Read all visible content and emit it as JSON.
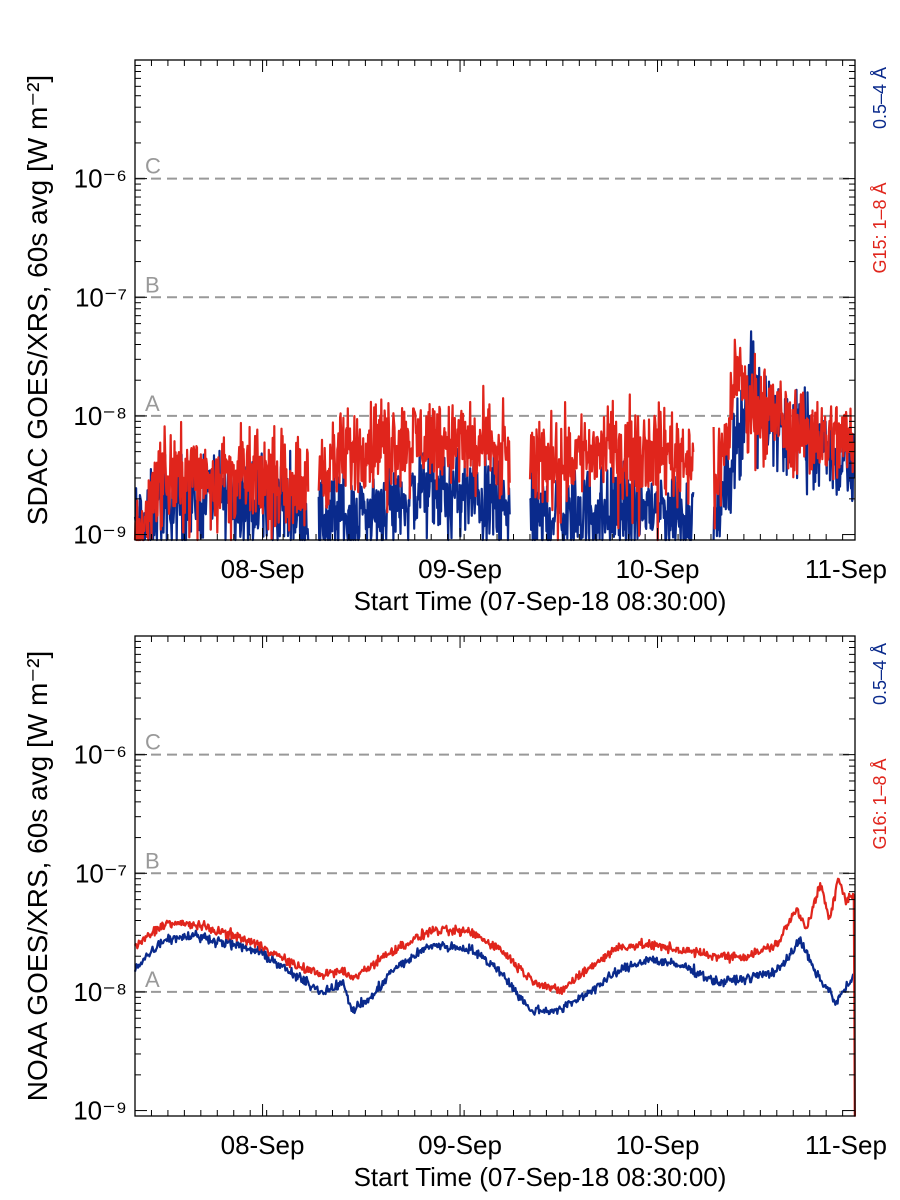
{
  "colors": {
    "low_channel": "#0a2a8c",
    "high_channel": "#e0251c",
    "flare_class": "#999999"
  },
  "chart_data": [
    {
      "type": "line",
      "ylabel": "SDAC GOES/XRS, 60s avg [W m⁻²]",
      "xlabel": "Start Time (07-Sep-18 08:30:00)",
      "x_tick_labels": [
        "08-Sep",
        "09-Sep",
        "10-Sep",
        "11-Sep"
      ],
      "x_range": [
        "07-Sep-18 08:30:00",
        "11-Sep-18 00:00:00"
      ],
      "y_scale": "log",
      "ylim": [
        9e-10,
        1e-05
      ],
      "y_tick_labels": [
        "10⁻⁹",
        "10⁻⁸",
        "10⁻⁷",
        "10⁻⁶"
      ],
      "flare_levels": [
        {
          "label": "A",
          "value": 1e-08
        },
        {
          "label": "B",
          "value": 1e-07
        },
        {
          "label": "C",
          "value": 1e-06
        }
      ],
      "series": [
        {
          "name": "0.5–4 Å",
          "color": "#0a2a8c",
          "kind": "noisy",
          "points": [
            [
              0,
              1.3e-09
            ],
            [
              0.05,
              1.1e-09
            ],
            [
              0.1,
              1.6e-09
            ],
            [
              0.2,
              1.9e-09
            ],
            [
              0.4,
              2.2e-09
            ],
            [
              0.6,
              2e-09
            ],
            [
              0.8,
              1.9e-09
            ],
            [
              0.88,
              1.6e-09
            ],
            [
              0.89,
              null
            ],
            [
              0.92,
              null
            ],
            [
              0.93,
              1.3e-09
            ],
            [
              1.2,
              1.6e-09
            ],
            [
              1.5,
              2.4e-09
            ],
            [
              1.75,
              2e-09
            ],
            [
              1.9,
              1.6e-09
            ],
            [
              1.92,
              null
            ],
            [
              1.98,
              null
            ],
            [
              2.0,
              1.4e-09
            ],
            [
              2.3,
              1.6e-09
            ],
            [
              2.6,
              1.7e-09
            ],
            [
              2.83,
              1.5e-09
            ],
            [
              2.85,
              null
            ],
            [
              2.9,
              null
            ],
            [
              2.93,
              1.2e-09
            ],
            [
              3.0,
              3e-09
            ],
            [
              3.07,
              9e-09
            ],
            [
              3.12,
              1.8e-08
            ],
            [
              3.18,
              1.4e-08
            ],
            [
              3.3,
              8e-09
            ],
            [
              3.5,
              6e-09
            ],
            [
              3.64,
              3e-09
            ]
          ]
        },
        {
          "name": "G15: 1–8 Å",
          "color": "#e0251c",
          "kind": "noisy",
          "points": [
            [
              0,
              1e-09
            ],
            [
              0.05,
              1.3e-09
            ],
            [
              0.1,
              2.8e-09
            ],
            [
              0.2,
              3.2e-09
            ],
            [
              0.4,
              3.4e-09
            ],
            [
              0.6,
              3e-09
            ],
            [
              0.8,
              3e-09
            ],
            [
              0.88,
              2.5e-09
            ],
            [
              0.89,
              null
            ],
            [
              0.92,
              null
            ],
            [
              0.93,
              3.5e-09
            ],
            [
              1.2,
              6e-09
            ],
            [
              1.5,
              6.5e-09
            ],
            [
              1.75,
              5.5e-09
            ],
            [
              1.9,
              4.5e-09
            ],
            [
              1.92,
              null
            ],
            [
              1.98,
              null
            ],
            [
              2.0,
              4e-09
            ],
            [
              2.3,
              5e-09
            ],
            [
              2.6,
              5.5e-09
            ],
            [
              2.83,
              4.5e-09
            ],
            [
              2.85,
              null
            ],
            [
              2.9,
              null
            ],
            [
              2.93,
              3e-09
            ],
            [
              3.0,
              6e-09
            ],
            [
              3.04,
              2.8e-08
            ],
            [
              3.1,
              1.4e-08
            ],
            [
              3.2,
              1.1e-08
            ],
            [
              3.35,
              8e-09
            ],
            [
              3.5,
              6.5e-09
            ],
            [
              3.64,
              6e-09
            ]
          ]
        }
      ]
    },
    {
      "type": "line",
      "ylabel": "NOAA GOES/XRS, 60s avg [W m⁻²]",
      "xlabel": "Start Time (07-Sep-18 08:30:00)",
      "x_tick_labels": [
        "08-Sep",
        "09-Sep",
        "10-Sep",
        "11-Sep"
      ],
      "x_range": [
        "07-Sep-18 08:30:00",
        "11-Sep-18 00:00:00"
      ],
      "y_scale": "log",
      "ylim": [
        9e-10,
        1e-05
      ],
      "y_tick_labels": [
        "10⁻⁹",
        "10⁻⁸",
        "10⁻⁷",
        "10⁻⁶"
      ],
      "flare_levels": [
        {
          "label": "A",
          "value": 1e-08
        },
        {
          "label": "B",
          "value": 1e-07
        },
        {
          "label": "C",
          "value": 1e-06
        }
      ],
      "series": [
        {
          "name": "0.5–4 Å",
          "color": "#0a2a8c",
          "kind": "smooth",
          "points": [
            [
              0,
              1.6e-08
            ],
            [
              0.15,
              2.8e-08
            ],
            [
              0.3,
              3e-08
            ],
            [
              0.5,
              2.5e-08
            ],
            [
              0.65,
              2.1e-08
            ],
            [
              0.8,
              1.4e-08
            ],
            [
              0.95,
              1e-08
            ],
            [
              1.05,
              1.2e-08
            ],
            [
              1.1,
              7e-09
            ],
            [
              1.2,
              9e-09
            ],
            [
              1.3,
              1.5e-08
            ],
            [
              1.5,
              2.5e-08
            ],
            [
              1.7,
              2.3e-08
            ],
            [
              1.85,
              1.5e-08
            ],
            [
              2.0,
              7e-09
            ],
            [
              2.15,
              7e-09
            ],
            [
              2.3,
              1e-08
            ],
            [
              2.45,
              1.5e-08
            ],
            [
              2.6,
              1.9e-08
            ],
            [
              2.8,
              1.6e-08
            ],
            [
              2.95,
              1.2e-08
            ],
            [
              3.1,
              1.3e-08
            ],
            [
              3.25,
              1.5e-08
            ],
            [
              3.37,
              2.7e-08
            ],
            [
              3.45,
              1.4e-08
            ],
            [
              3.52,
              1e-08
            ],
            [
              3.55,
              8e-09
            ],
            [
              3.6,
              1.1e-08
            ],
            [
              3.64,
              1.3e-08
            ]
          ]
        },
        {
          "name": "G16: 1–8 Å",
          "color": "#e0251c",
          "kind": "smooth",
          "points": [
            [
              0,
              2.4e-08
            ],
            [
              0.15,
              3.8e-08
            ],
            [
              0.3,
              3.7e-08
            ],
            [
              0.5,
              3e-08
            ],
            [
              0.65,
              2.4e-08
            ],
            [
              0.8,
              1.7e-08
            ],
            [
              0.95,
              1.4e-08
            ],
            [
              1.05,
              1.5e-08
            ],
            [
              1.1,
              1.3e-08
            ],
            [
              1.3,
              2.2e-08
            ],
            [
              1.5,
              3.3e-08
            ],
            [
              1.7,
              3.2e-08
            ],
            [
              1.85,
              2.3e-08
            ],
            [
              2.0,
              1.3e-08
            ],
            [
              2.15,
              1e-08
            ],
            [
              2.3,
              1.6e-08
            ],
            [
              2.45,
              2.4e-08
            ],
            [
              2.6,
              2.5e-08
            ],
            [
              2.8,
              2.2e-08
            ],
            [
              2.95,
              2e-08
            ],
            [
              3.1,
              2e-08
            ],
            [
              3.25,
              2.5e-08
            ],
            [
              3.35,
              5e-08
            ],
            [
              3.4,
              3.5e-08
            ],
            [
              3.47,
              8e-08
            ],
            [
              3.52,
              4e-08
            ],
            [
              3.56,
              9e-08
            ],
            [
              3.6,
              6e-08
            ],
            [
              3.64,
              6.5e-08
            ],
            [
              3.645,
              1e-09
            ],
            [
              3.71,
              1e-09
            ]
          ]
        }
      ]
    }
  ]
}
